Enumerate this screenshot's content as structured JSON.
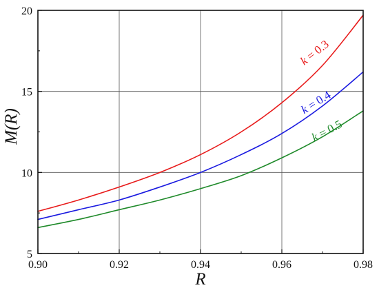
{
  "chart_data": {
    "type": "line",
    "title": "",
    "xlabel": "R",
    "ylabel": "M(R)",
    "xlim": [
      0.9,
      0.98
    ],
    "ylim": [
      5,
      20
    ],
    "x_ticks": [
      0.9,
      0.92,
      0.94,
      0.96,
      0.98
    ],
    "y_ticks": [
      5,
      10,
      15,
      20
    ],
    "x_tick_labels": [
      "0.90",
      "0.92",
      "0.94",
      "0.96",
      "0.98"
    ],
    "y_tick_labels": [
      "5",
      "10",
      "15",
      "20"
    ],
    "grid": true,
    "legend": "none (inline labels beside curves)",
    "series": [
      {
        "name": "k = 0.3",
        "label_k": "k",
        "label_rest": " = 0.3",
        "color": "#e81a1a",
        "x": [
          0.9,
          0.91,
          0.92,
          0.93,
          0.94,
          0.95,
          0.96,
          0.97,
          0.98
        ],
        "y": [
          7.6,
          8.3,
          9.1,
          10.0,
          11.1,
          12.5,
          14.3,
          16.6,
          19.7
        ]
      },
      {
        "name": "k = 0.4",
        "label_k": "k",
        "label_rest": " = 0.4",
        "color": "#1a1ae0",
        "x": [
          0.9,
          0.91,
          0.92,
          0.93,
          0.94,
          0.95,
          0.96,
          0.97,
          0.98
        ],
        "y": [
          7.1,
          7.7,
          8.3,
          9.1,
          10.0,
          11.1,
          12.4,
          14.1,
          16.2
        ]
      },
      {
        "name": "k = 0.5",
        "label_k": "k",
        "label_rest": " = 0.5",
        "color": "#1f8a2a",
        "x": [
          0.9,
          0.91,
          0.92,
          0.93,
          0.94,
          0.95,
          0.96,
          0.97,
          0.98
        ],
        "y": [
          6.6,
          7.1,
          7.7,
          8.3,
          9.0,
          9.8,
          10.9,
          12.2,
          13.8
        ]
      }
    ]
  }
}
